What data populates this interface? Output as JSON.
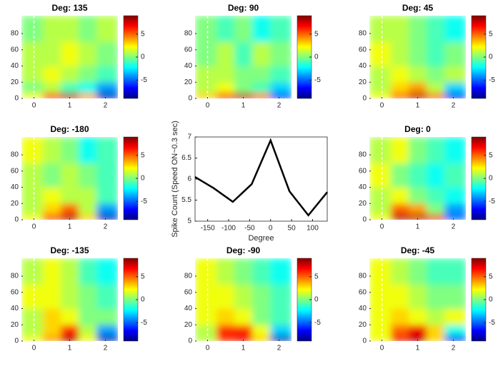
{
  "chart_data": [
    {
      "type": "heatmap",
      "title": "Deg: 135",
      "x_edges": [
        -0.35,
        0.25,
        0.75,
        1.25,
        1.75,
        2.35
      ],
      "y_edges": [
        0,
        7,
        20,
        40,
        70,
        102
      ],
      "z": [
        [
          2,
          6,
          8,
          4,
          -8
        ],
        [
          0,
          1,
          -1,
          -2,
          -4
        ],
        [
          1,
          2,
          1,
          0,
          -1
        ],
        [
          1,
          1,
          2,
          1,
          0
        ],
        [
          0,
          1,
          1,
          0,
          1
        ]
      ],
      "xlim": [
        -0.35,
        2.35
      ],
      "ylim": [
        0,
        102
      ],
      "xticks": [
        0,
        1,
        2
      ],
      "yticks": [
        0,
        20,
        40,
        60,
        80
      ],
      "clim": [
        -9,
        9
      ],
      "cticks": [
        -5,
        0,
        5
      ],
      "vline": 0
    },
    {
      "type": "heatmap",
      "title": "Deg: 90",
      "x_edges": [
        -0.35,
        0.25,
        0.75,
        1.25,
        1.75,
        2.35
      ],
      "y_edges": [
        0,
        7,
        20,
        40,
        70,
        102
      ],
      "z": [
        [
          3,
          6,
          8,
          5,
          -6
        ],
        [
          1,
          2,
          0,
          -1,
          -3
        ],
        [
          1,
          1,
          0,
          0,
          -1
        ],
        [
          0,
          1,
          -1,
          1,
          0
        ],
        [
          0,
          -1,
          0,
          -2,
          -1
        ]
      ],
      "xlim": [
        -0.35,
        2.35
      ],
      "ylim": [
        0,
        102
      ],
      "xticks": [
        0,
        1,
        2
      ],
      "yticks": [
        0,
        20,
        40,
        60,
        80
      ],
      "clim": [
        -9,
        9
      ],
      "cticks": [
        -5,
        0,
        5
      ],
      "vline": 0
    },
    {
      "type": "heatmap",
      "title": "Deg: 45",
      "x_edges": [
        -0.35,
        0.25,
        0.75,
        1.25,
        1.75,
        2.35
      ],
      "y_edges": [
        0,
        7,
        20,
        40,
        70,
        102
      ],
      "z": [
        [
          2,
          5,
          8,
          5,
          -7
        ],
        [
          1,
          3,
          4,
          1,
          -3
        ],
        [
          1,
          2,
          1,
          0,
          1
        ],
        [
          2,
          1,
          0,
          -1,
          0
        ],
        [
          1,
          1,
          0,
          -1,
          -2
        ]
      ],
      "xlim": [
        -0.35,
        2.35
      ],
      "ylim": [
        0,
        102
      ],
      "xticks": [
        0,
        1,
        2
      ],
      "yticks": [
        0,
        20,
        40,
        60,
        80
      ],
      "clim": [
        -9,
        9
      ],
      "cticks": [
        -5,
        0,
        5
      ],
      "vline": 0
    },
    {
      "type": "heatmap",
      "title": "Deg: -180",
      "x_edges": [
        -0.35,
        0.25,
        0.75,
        1.25,
        1.75,
        2.35
      ],
      "y_edges": [
        0,
        7,
        20,
        40,
        70,
        102
      ],
      "z": [
        [
          2,
          6,
          8,
          3,
          -8
        ],
        [
          1,
          3,
          5,
          1,
          -4
        ],
        [
          1,
          2,
          1,
          1,
          -1
        ],
        [
          1,
          0,
          1,
          0,
          -1
        ],
        [
          2,
          1,
          0,
          -2,
          -1
        ]
      ],
      "xlim": [
        -0.35,
        2.35
      ],
      "ylim": [
        0,
        102
      ],
      "xticks": [
        0,
        1,
        2
      ],
      "yticks": [
        0,
        20,
        40,
        60,
        80
      ],
      "clim": [
        -9,
        9
      ],
      "cticks": [
        -5,
        0,
        5
      ],
      "vline": 0
    },
    {
      "type": "line",
      "xlabel": "Degree",
      "ylabel": "Spike Count (Speed ON~0.3 sec)",
      "x": [
        -180,
        -135,
        -90,
        -45,
        0,
        45,
        90,
        135
      ],
      "values": [
        6.05,
        5.78,
        5.46,
        5.88,
        6.92,
        5.71,
        5.14,
        5.69
      ],
      "color": "#000000",
      "xlim": [
        -180,
        135
      ],
      "ylim": [
        5,
        7
      ],
      "xticks": [
        -150,
        -100,
        -50,
        0,
        50,
        100
      ],
      "yticks": [
        5,
        5.5,
        6,
        6.5,
        7
      ]
    },
    {
      "type": "heatmap",
      "title": "Deg: 0",
      "x_edges": [
        -0.35,
        0.25,
        0.75,
        1.25,
        1.75,
        2.35
      ],
      "y_edges": [
        0,
        7,
        20,
        40,
        70,
        102
      ],
      "z": [
        [
          2,
          8,
          8,
          7,
          -5
        ],
        [
          1,
          5,
          4,
          0,
          -4
        ],
        [
          1,
          2,
          0,
          -1,
          -2
        ],
        [
          2,
          0,
          -1,
          -2,
          -1
        ],
        [
          1,
          2,
          0,
          -1,
          -2
        ]
      ],
      "xlim": [
        -0.35,
        2.35
      ],
      "ylim": [
        0,
        102
      ],
      "xticks": [
        0,
        1,
        2
      ],
      "yticks": [
        0,
        20,
        40,
        60,
        80
      ],
      "clim": [
        -9,
        9
      ],
      "cticks": [
        -5,
        0,
        5
      ],
      "vline": 0
    },
    {
      "type": "heatmap",
      "title": "Deg: -135",
      "x_edges": [
        -0.35,
        0.25,
        0.75,
        1.25,
        1.75,
        2.35
      ],
      "y_edges": [
        0,
        7,
        20,
        40,
        70,
        102
      ],
      "z": [
        [
          2,
          4,
          8,
          2,
          -8
        ],
        [
          1,
          3,
          6,
          1,
          -4
        ],
        [
          1,
          3,
          2,
          0,
          0
        ],
        [
          2,
          2,
          1,
          0,
          -1
        ],
        [
          1,
          2,
          1,
          -1,
          -2
        ]
      ],
      "xlim": [
        -0.35,
        2.35
      ],
      "ylim": [
        0,
        102
      ],
      "xticks": [
        0,
        1,
        2
      ],
      "yticks": [
        0,
        20,
        40,
        60,
        80
      ],
      "clim": [
        -9,
        9
      ],
      "cticks": [
        -5,
        0,
        5
      ],
      "vline": 0
    },
    {
      "type": "heatmap",
      "title": "Deg: -90",
      "x_edges": [
        -0.35,
        0.25,
        0.75,
        1.25,
        1.75,
        2.35
      ],
      "y_edges": [
        0,
        7,
        20,
        40,
        70,
        102
      ],
      "z": [
        [
          1,
          6,
          7,
          3,
          -8
        ],
        [
          1,
          6,
          6,
          2,
          -3
        ],
        [
          2,
          3,
          2,
          0,
          -1
        ],
        [
          2,
          2,
          1,
          0,
          -1
        ],
        [
          2,
          1,
          0,
          -1,
          -2
        ]
      ],
      "xlim": [
        -0.35,
        2.35
      ],
      "ylim": [
        0,
        102
      ],
      "xticks": [
        0,
        1,
        2
      ],
      "yticks": [
        0,
        20,
        40,
        60,
        80
      ],
      "clim": [
        -9,
        9
      ],
      "cticks": [
        -5,
        0,
        5
      ],
      "vline": 0
    },
    {
      "type": "heatmap",
      "title": "Deg: -45",
      "x_edges": [
        -0.35,
        0.25,
        0.75,
        1.25,
        1.75,
        2.35
      ],
      "y_edges": [
        0,
        7,
        20,
        40,
        70,
        102
      ],
      "z": [
        [
          2,
          7,
          8,
          3,
          -7
        ],
        [
          2,
          5,
          7,
          3,
          -2
        ],
        [
          2,
          3,
          2,
          1,
          2
        ],
        [
          2,
          2,
          1,
          0,
          0
        ],
        [
          2,
          1,
          0,
          -1,
          -1
        ]
      ],
      "xlim": [
        -0.35,
        2.35
      ],
      "ylim": [
        0,
        102
      ],
      "xticks": [
        0,
        1,
        2
      ],
      "yticks": [
        0,
        20,
        40,
        60,
        80
      ],
      "clim": [
        -9,
        9
      ],
      "cticks": [
        -5,
        0,
        5
      ],
      "vline": 0
    }
  ]
}
